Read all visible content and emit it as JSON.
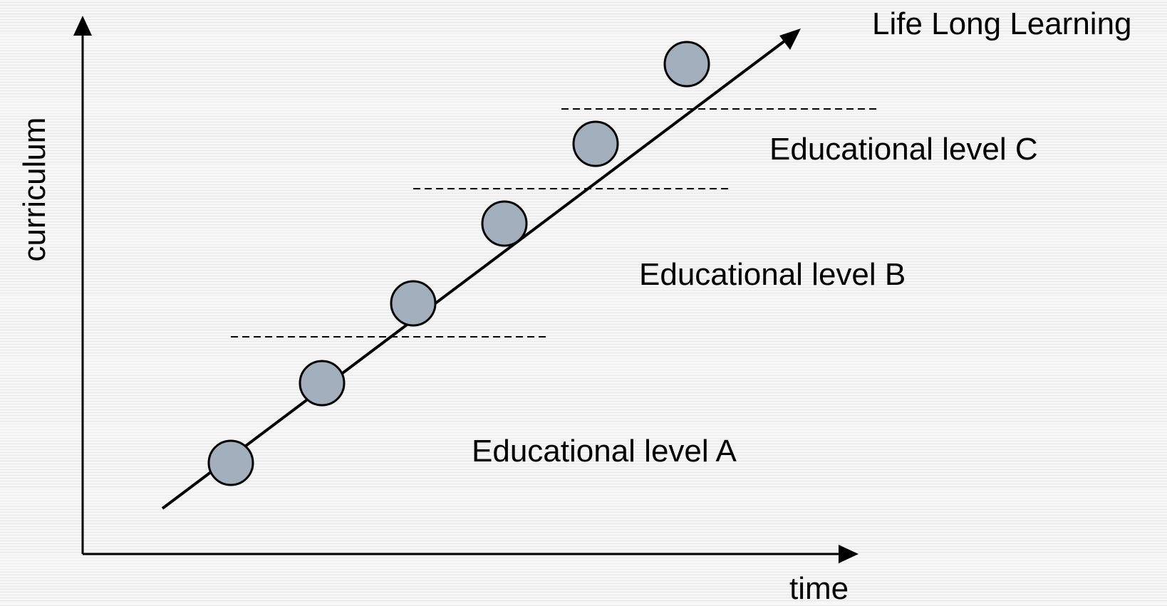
{
  "labels": {
    "title": "Life Long Learning",
    "level_c": "Educational level C",
    "level_b": "Educational level B",
    "level_a": "Educational level A",
    "x_axis": "time",
    "y_axis": "curriculum"
  },
  "milestone_count": 6,
  "colors": {
    "milestone_fill": "#a2afbd",
    "line": "#000000",
    "background": "#f4f4f4"
  }
}
